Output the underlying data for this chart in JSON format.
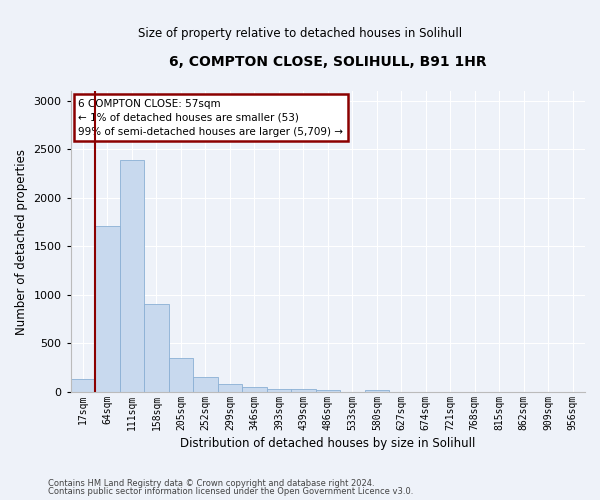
{
  "title": "6, COMPTON CLOSE, SOLIHULL, B91 1HR",
  "subtitle": "Size of property relative to detached houses in Solihull",
  "xlabel": "Distribution of detached houses by size in Solihull",
  "ylabel": "Number of detached properties",
  "bar_color": "#c8d9ee",
  "bar_edge_color": "#8ab0d4",
  "highlight_color": "#8b0000",
  "categories": [
    "17sqm",
    "64sqm",
    "111sqm",
    "158sqm",
    "205sqm",
    "252sqm",
    "299sqm",
    "346sqm",
    "393sqm",
    "439sqm",
    "486sqm",
    "533sqm",
    "580sqm",
    "627sqm",
    "674sqm",
    "721sqm",
    "768sqm",
    "815sqm",
    "862sqm",
    "909sqm",
    "956sqm"
  ],
  "values": [
    130,
    1710,
    2390,
    910,
    350,
    155,
    85,
    48,
    32,
    28,
    25,
    5,
    25,
    0,
    0,
    0,
    0,
    0,
    0,
    0,
    0
  ],
  "red_line_after_index": 0,
  "ylim": [
    0,
    3100
  ],
  "yticks": [
    0,
    500,
    1000,
    1500,
    2000,
    2500,
    3000
  ],
  "annotation_text": "6 COMPTON CLOSE: 57sqm\n← 1% of detached houses are smaller (53)\n99% of semi-detached houses are larger (5,709) →",
  "footnote1": "Contains HM Land Registry data © Crown copyright and database right 2024.",
  "footnote2": "Contains public sector information licensed under the Open Government Licence v3.0.",
  "background_color": "#eef2f9",
  "annotation_box_color": "#ffffff",
  "annotation_box_edge": "#8b0000",
  "grid_color": "#ffffff"
}
